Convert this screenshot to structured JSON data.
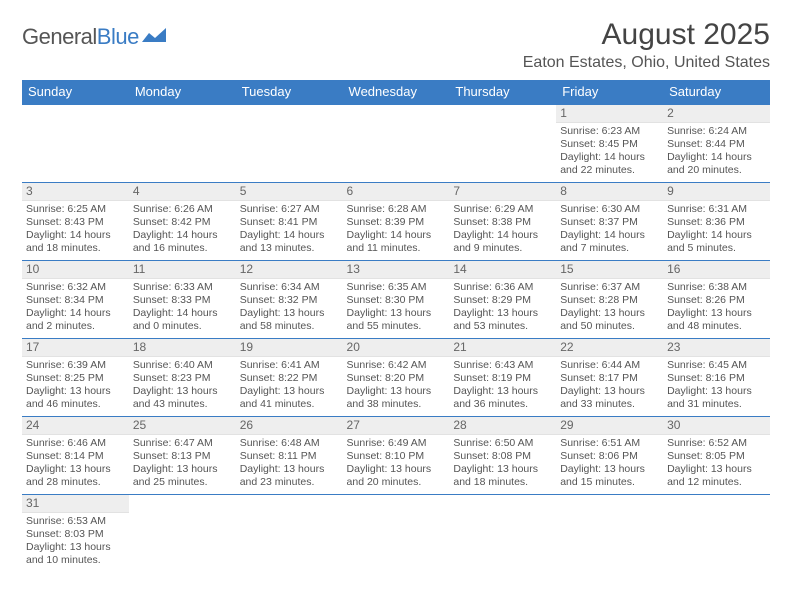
{
  "logo": {
    "text1": "General",
    "text2": "Blue"
  },
  "title": "August 2025",
  "location": "Eaton Estates, Ohio, United States",
  "headers": [
    "Sunday",
    "Monday",
    "Tuesday",
    "Wednesday",
    "Thursday",
    "Friday",
    "Saturday"
  ],
  "colors": {
    "accent": "#3a7cc4",
    "header_bg": "#3a7cc4",
    "header_text": "#ffffff",
    "daybar_bg": "#eeeeee",
    "body_text": "#555555",
    "background": "#ffffff"
  },
  "weeks": [
    [
      null,
      null,
      null,
      null,
      null,
      {
        "d": "1",
        "sr": "Sunrise: 6:23 AM",
        "ss": "Sunset: 8:45 PM",
        "dl1": "Daylight: 14 hours",
        "dl2": "and 22 minutes."
      },
      {
        "d": "2",
        "sr": "Sunrise: 6:24 AM",
        "ss": "Sunset: 8:44 PM",
        "dl1": "Daylight: 14 hours",
        "dl2": "and 20 minutes."
      }
    ],
    [
      {
        "d": "3",
        "sr": "Sunrise: 6:25 AM",
        "ss": "Sunset: 8:43 PM",
        "dl1": "Daylight: 14 hours",
        "dl2": "and 18 minutes."
      },
      {
        "d": "4",
        "sr": "Sunrise: 6:26 AM",
        "ss": "Sunset: 8:42 PM",
        "dl1": "Daylight: 14 hours",
        "dl2": "and 16 minutes."
      },
      {
        "d": "5",
        "sr": "Sunrise: 6:27 AM",
        "ss": "Sunset: 8:41 PM",
        "dl1": "Daylight: 14 hours",
        "dl2": "and 13 minutes."
      },
      {
        "d": "6",
        "sr": "Sunrise: 6:28 AM",
        "ss": "Sunset: 8:39 PM",
        "dl1": "Daylight: 14 hours",
        "dl2": "and 11 minutes."
      },
      {
        "d": "7",
        "sr": "Sunrise: 6:29 AM",
        "ss": "Sunset: 8:38 PM",
        "dl1": "Daylight: 14 hours",
        "dl2": "and 9 minutes."
      },
      {
        "d": "8",
        "sr": "Sunrise: 6:30 AM",
        "ss": "Sunset: 8:37 PM",
        "dl1": "Daylight: 14 hours",
        "dl2": "and 7 minutes."
      },
      {
        "d": "9",
        "sr": "Sunrise: 6:31 AM",
        "ss": "Sunset: 8:36 PM",
        "dl1": "Daylight: 14 hours",
        "dl2": "and 5 minutes."
      }
    ],
    [
      {
        "d": "10",
        "sr": "Sunrise: 6:32 AM",
        "ss": "Sunset: 8:34 PM",
        "dl1": "Daylight: 14 hours",
        "dl2": "and 2 minutes."
      },
      {
        "d": "11",
        "sr": "Sunrise: 6:33 AM",
        "ss": "Sunset: 8:33 PM",
        "dl1": "Daylight: 14 hours",
        "dl2": "and 0 minutes."
      },
      {
        "d": "12",
        "sr": "Sunrise: 6:34 AM",
        "ss": "Sunset: 8:32 PM",
        "dl1": "Daylight: 13 hours",
        "dl2": "and 58 minutes."
      },
      {
        "d": "13",
        "sr": "Sunrise: 6:35 AM",
        "ss": "Sunset: 8:30 PM",
        "dl1": "Daylight: 13 hours",
        "dl2": "and 55 minutes."
      },
      {
        "d": "14",
        "sr": "Sunrise: 6:36 AM",
        "ss": "Sunset: 8:29 PM",
        "dl1": "Daylight: 13 hours",
        "dl2": "and 53 minutes."
      },
      {
        "d": "15",
        "sr": "Sunrise: 6:37 AM",
        "ss": "Sunset: 8:28 PM",
        "dl1": "Daylight: 13 hours",
        "dl2": "and 50 minutes."
      },
      {
        "d": "16",
        "sr": "Sunrise: 6:38 AM",
        "ss": "Sunset: 8:26 PM",
        "dl1": "Daylight: 13 hours",
        "dl2": "and 48 minutes."
      }
    ],
    [
      {
        "d": "17",
        "sr": "Sunrise: 6:39 AM",
        "ss": "Sunset: 8:25 PM",
        "dl1": "Daylight: 13 hours",
        "dl2": "and 46 minutes."
      },
      {
        "d": "18",
        "sr": "Sunrise: 6:40 AM",
        "ss": "Sunset: 8:23 PM",
        "dl1": "Daylight: 13 hours",
        "dl2": "and 43 minutes."
      },
      {
        "d": "19",
        "sr": "Sunrise: 6:41 AM",
        "ss": "Sunset: 8:22 PM",
        "dl1": "Daylight: 13 hours",
        "dl2": "and 41 minutes."
      },
      {
        "d": "20",
        "sr": "Sunrise: 6:42 AM",
        "ss": "Sunset: 8:20 PM",
        "dl1": "Daylight: 13 hours",
        "dl2": "and 38 minutes."
      },
      {
        "d": "21",
        "sr": "Sunrise: 6:43 AM",
        "ss": "Sunset: 8:19 PM",
        "dl1": "Daylight: 13 hours",
        "dl2": "and 36 minutes."
      },
      {
        "d": "22",
        "sr": "Sunrise: 6:44 AM",
        "ss": "Sunset: 8:17 PM",
        "dl1": "Daylight: 13 hours",
        "dl2": "and 33 minutes."
      },
      {
        "d": "23",
        "sr": "Sunrise: 6:45 AM",
        "ss": "Sunset: 8:16 PM",
        "dl1": "Daylight: 13 hours",
        "dl2": "and 31 minutes."
      }
    ],
    [
      {
        "d": "24",
        "sr": "Sunrise: 6:46 AM",
        "ss": "Sunset: 8:14 PM",
        "dl1": "Daylight: 13 hours",
        "dl2": "and 28 minutes."
      },
      {
        "d": "25",
        "sr": "Sunrise: 6:47 AM",
        "ss": "Sunset: 8:13 PM",
        "dl1": "Daylight: 13 hours",
        "dl2": "and 25 minutes."
      },
      {
        "d": "26",
        "sr": "Sunrise: 6:48 AM",
        "ss": "Sunset: 8:11 PM",
        "dl1": "Daylight: 13 hours",
        "dl2": "and 23 minutes."
      },
      {
        "d": "27",
        "sr": "Sunrise: 6:49 AM",
        "ss": "Sunset: 8:10 PM",
        "dl1": "Daylight: 13 hours",
        "dl2": "and 20 minutes."
      },
      {
        "d": "28",
        "sr": "Sunrise: 6:50 AM",
        "ss": "Sunset: 8:08 PM",
        "dl1": "Daylight: 13 hours",
        "dl2": "and 18 minutes."
      },
      {
        "d": "29",
        "sr": "Sunrise: 6:51 AM",
        "ss": "Sunset: 8:06 PM",
        "dl1": "Daylight: 13 hours",
        "dl2": "and 15 minutes."
      },
      {
        "d": "30",
        "sr": "Sunrise: 6:52 AM",
        "ss": "Sunset: 8:05 PM",
        "dl1": "Daylight: 13 hours",
        "dl2": "and 12 minutes."
      }
    ],
    [
      {
        "d": "31",
        "sr": "Sunrise: 6:53 AM",
        "ss": "Sunset: 8:03 PM",
        "dl1": "Daylight: 13 hours",
        "dl2": "and 10 minutes."
      },
      null,
      null,
      null,
      null,
      null,
      null
    ]
  ]
}
